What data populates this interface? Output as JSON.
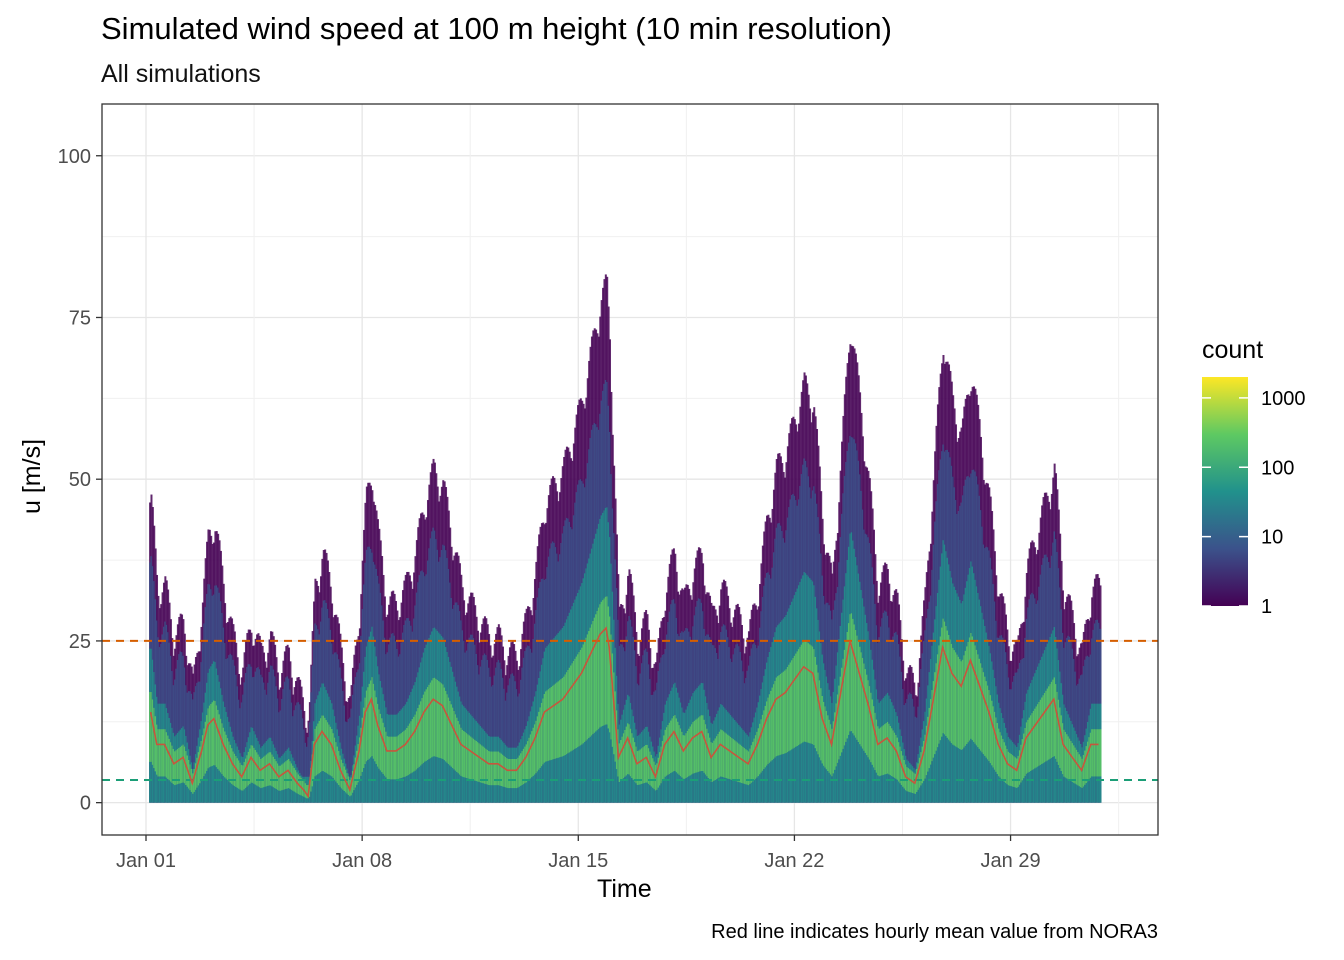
{
  "chart_data": {
    "type": "heatmap",
    "title": "Simulated wind speed at 100 m height (10 min resolution)",
    "subtitle": "All simulations",
    "xlabel": "Time",
    "ylabel": "u [m/s]",
    "caption": "Red line indicates hourly mean value from NORA3",
    "x_range_days": [
      0.0,
      31.0
    ],
    "x_ticks": [
      {
        "day": 0,
        "label": "Jan 01"
      },
      {
        "day": 7,
        "label": "Jan 08"
      },
      {
        "day": 14,
        "label": "Jan 15"
      },
      {
        "day": 21,
        "label": "Jan 22"
      },
      {
        "day": 28,
        "label": "Jan 29"
      }
    ],
    "ylim": [
      -5,
      108
    ],
    "y_ticks": [
      0,
      25,
      50,
      75,
      100
    ],
    "grid": true,
    "legend": {
      "title": "count",
      "scale": "log10",
      "position": "right",
      "range": [
        1,
        2000
      ],
      "ticks": [
        {
          "value": 1,
          "label": "1"
        },
        {
          "value": 10,
          "label": "10"
        },
        {
          "value": 100,
          "label": "100"
        },
        {
          "value": 1000,
          "label": "1000"
        }
      ],
      "colormap": [
        "#440154",
        "#3b528b",
        "#21918c",
        "#5ec962",
        "#fde725"
      ]
    },
    "reference_lines": [
      {
        "y": 25,
        "color": "#d55e00",
        "style": "dashed"
      },
      {
        "y": 3.5,
        "color": "#1b9e77",
        "style": "dashed"
      }
    ],
    "nora3_hourly_mean": {
      "color": "#c8553d",
      "x": [
        0.15,
        0.35,
        0.6,
        0.9,
        1.2,
        1.5,
        1.8,
        2.0,
        2.2,
        2.5,
        2.8,
        3.1,
        3.4,
        3.7,
        4.0,
        4.3,
        4.6,
        4.9,
        5.1,
        5.25,
        5.45,
        5.7,
        6.0,
        6.3,
        6.6,
        6.9,
        7.1,
        7.3,
        7.5,
        7.8,
        8.1,
        8.4,
        8.7,
        9.0,
        9.3,
        9.6,
        9.9,
        10.2,
        10.5,
        10.8,
        11.1,
        11.4,
        11.7,
        12.0,
        12.3,
        12.6,
        12.9,
        13.2,
        13.5,
        13.8,
        14.1,
        14.4,
        14.7,
        14.9,
        15.0,
        15.3,
        15.6,
        15.9,
        16.2,
        16.5,
        16.8,
        17.1,
        17.4,
        17.7,
        18.0,
        18.3,
        18.6,
        18.9,
        19.2,
        19.5,
        19.8,
        20.1,
        20.4,
        20.7,
        21.0,
        21.3,
        21.6,
        21.9,
        22.2,
        22.5,
        22.8,
        23.1,
        23.4,
        23.7,
        24.0,
        24.3,
        24.6,
        24.9,
        25.2,
        25.5,
        25.8,
        26.1,
        26.4,
        26.7,
        27.0,
        27.3,
        27.6,
        27.9,
        28.2,
        28.5,
        28.8,
        29.1,
        29.4,
        29.7,
        30.0,
        30.3,
        30.6,
        30.85
      ],
      "y": [
        14,
        9,
        9,
        6,
        7,
        3,
        8,
        12,
        13,
        9,
        6,
        4,
        7,
        5,
        6,
        4,
        5,
        3,
        2,
        1,
        9,
        11,
        9,
        5,
        2,
        8,
        14,
        16,
        12,
        8,
        8,
        9,
        11,
        14,
        16,
        15,
        12,
        9,
        8,
        7,
        6,
        6,
        5,
        5,
        7,
        10,
        14,
        15,
        16,
        18,
        20,
        23,
        26,
        27,
        24,
        7,
        10,
        6,
        7,
        4,
        9,
        11,
        8,
        10,
        11,
        7,
        9,
        8,
        7,
        6,
        9,
        13,
        16,
        17,
        19,
        21,
        20,
        13,
        9,
        17,
        25,
        20,
        15,
        9,
        10,
        8,
        4,
        3,
        8,
        16,
        24,
        20,
        18,
        22,
        18,
        14,
        9,
        6,
        5,
        10,
        12,
        14,
        16,
        9,
        7,
        5,
        9,
        9
      ]
    }
  }
}
